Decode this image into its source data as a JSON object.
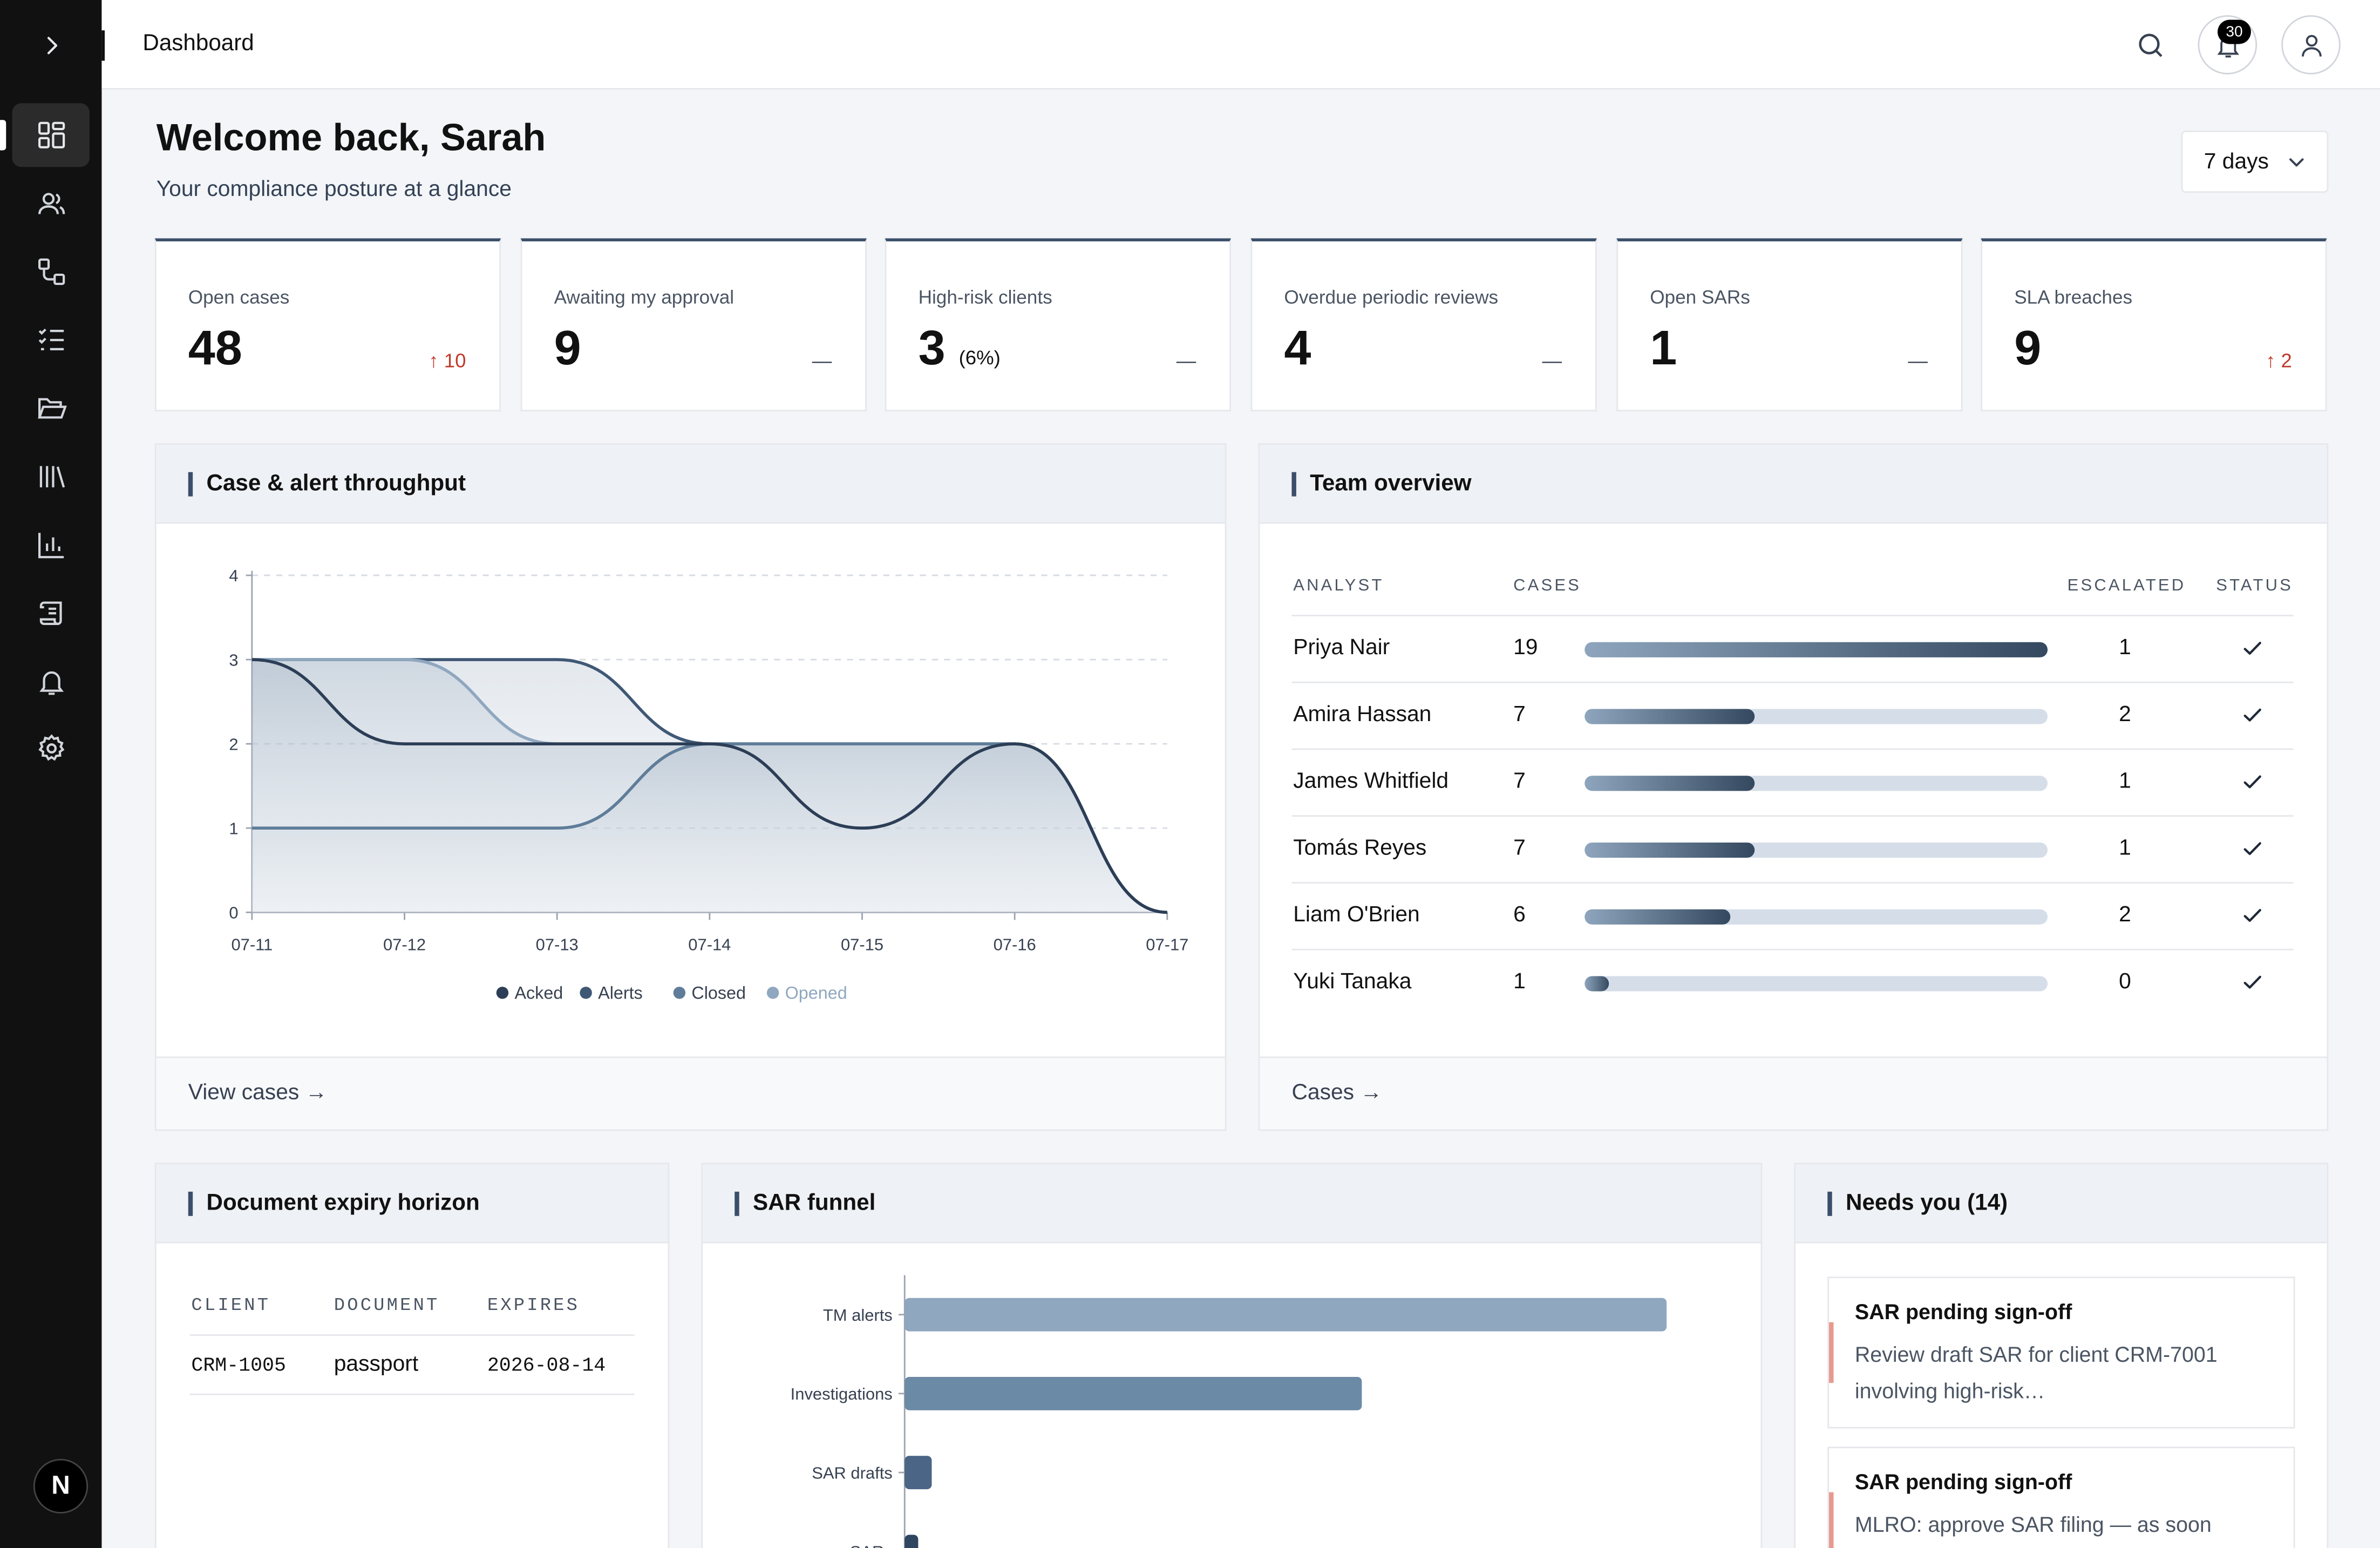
{
  "topbar": {
    "page_title": "Dashboard",
    "notification_count": "30"
  },
  "sidebar": {
    "items": [
      {
        "icon": "dashboard-icon",
        "active": true
      },
      {
        "icon": "users-icon"
      },
      {
        "icon": "workflow-icon"
      },
      {
        "icon": "checklist-icon"
      },
      {
        "icon": "folder-icon"
      },
      {
        "icon": "library-icon"
      },
      {
        "icon": "bar-chart-icon"
      },
      {
        "icon": "scroll-icon"
      },
      {
        "icon": "bell-icon"
      },
      {
        "icon": "settings-icon"
      }
    ],
    "avatar_letter": "N"
  },
  "header": {
    "welcome": "Welcome back, Sarah",
    "subtitle": "Your compliance posture at a glance",
    "range": "7 days"
  },
  "kpis": [
    {
      "label": "Open cases",
      "value": "48",
      "suffix": "",
      "delta": "↑ 10",
      "trend": "up"
    },
    {
      "label": "Awaiting my approval",
      "value": "9",
      "suffix": "",
      "delta": "—",
      "trend": "flat"
    },
    {
      "label": "High-risk clients",
      "value": "3",
      "suffix": "(6%)",
      "delta": "—",
      "trend": "flat"
    },
    {
      "label": "Overdue periodic reviews",
      "value": "4",
      "suffix": "",
      "delta": "—",
      "trend": "flat"
    },
    {
      "label": "Open SARs",
      "value": "1",
      "suffix": "",
      "delta": "—",
      "trend": "flat"
    },
    {
      "label": "SLA breaches",
      "value": "9",
      "suffix": "",
      "delta": "↑ 2",
      "trend": "up"
    }
  ],
  "throughput": {
    "title": "Case & alert throughput",
    "footer_link": "View cases →"
  },
  "team": {
    "title": "Team overview",
    "headers": {
      "analyst": "ANALYST",
      "cases": "CASES",
      "escalated": "ESCALATED",
      "status": "STATUS"
    },
    "max_cases": 19,
    "rows": [
      {
        "name": "Priya Nair",
        "cases": 19,
        "escalated": "1",
        "status": "ok"
      },
      {
        "name": "Amira Hassan",
        "cases": 7,
        "escalated": "2",
        "status": "ok"
      },
      {
        "name": "James Whitfield",
        "cases": 7,
        "escalated": "1",
        "status": "ok"
      },
      {
        "name": "Tomás Reyes",
        "cases": 7,
        "escalated": "1",
        "status": "ok"
      },
      {
        "name": "Liam O'Brien",
        "cases": 6,
        "escalated": "2",
        "status": "ok"
      },
      {
        "name": "Yuki Tanaka",
        "cases": 1,
        "escalated": "0",
        "status": "ok"
      }
    ],
    "footer_link": "Cases →"
  },
  "doc_expiry": {
    "title": "Document expiry horizon",
    "headers": {
      "client": "CLIENT",
      "document": "DOCUMENT",
      "expires": "EXPIRES"
    },
    "rows": [
      {
        "client": "CRM-1005",
        "document": "passport",
        "expires": "2026-08-14"
      }
    ]
  },
  "sar_funnel_panel": {
    "title": "SAR funnel"
  },
  "needs_you": {
    "title": "Needs you (14)",
    "items": [
      {
        "title": "SAR pending sign-off",
        "body": "Review draft SAR for client CRM-7001 involving high-risk…"
      },
      {
        "title": "SAR pending sign-off",
        "body": "MLRO: approve SAR filing — as soon"
      }
    ]
  },
  "chart_data": [
    {
      "type": "area",
      "x": [
        "07-11",
        "07-12",
        "07-13",
        "07-14",
        "07-15",
        "07-16",
        "07-17"
      ],
      "ylim": [
        0,
        4
      ],
      "yticks": [
        0,
        1,
        2,
        3,
        4
      ],
      "grid": true,
      "legend_position": "bottom",
      "series": [
        {
          "name": "Acked",
          "values": [
            3,
            2,
            2,
            2,
            1,
            2,
            0
          ],
          "color": "#2c3e56"
        },
        {
          "name": "Alerts",
          "values": [
            3,
            3,
            3,
            2,
            2,
            2,
            0
          ],
          "color": "#3f5875"
        },
        {
          "name": "Closed",
          "values": [
            1,
            1,
            1,
            2,
            2,
            2,
            0
          ],
          "color": "#5f7d99"
        },
        {
          "name": "Opened",
          "values": [
            3,
            3,
            2,
            2,
            2,
            2,
            0
          ],
          "color": "#8fa7bf"
        }
      ]
    },
    {
      "type": "bar",
      "orientation": "horizontal",
      "categories": [
        "TM alerts",
        "Investigations",
        "SAR drafts",
        "SARs"
      ],
      "values": [
        45,
        27,
        1.6,
        0.8
      ],
      "colors": [
        "#8fa7bf",
        "#6b8aa6",
        "#4a6585",
        "#2f4560"
      ]
    }
  ]
}
